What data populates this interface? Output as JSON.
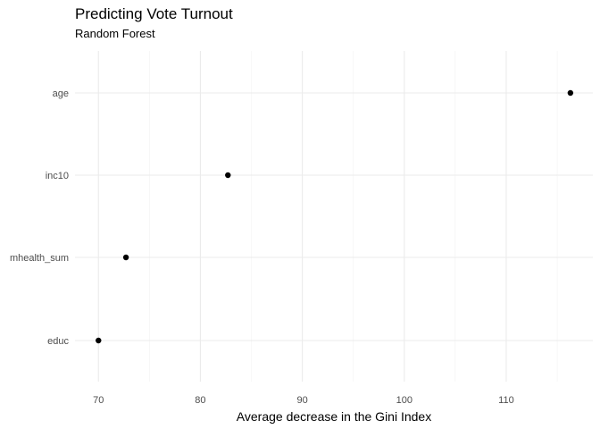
{
  "chart_data": {
    "type": "scatter",
    "title": "Predicting Vote Turnout",
    "subtitle": "Random Forest",
    "xlabel": "Average decrease in the Gini Index",
    "ylabel": "",
    "categories": [
      "age",
      "inc10",
      "mhealth_sum",
      "educ"
    ],
    "values": [
      116.3,
      82.7,
      72.7,
      70.0
    ],
    "xlim": [
      67.7,
      118.5
    ],
    "xticks": [
      70,
      80,
      90,
      100,
      110
    ],
    "grid": true,
    "point_color": "#000000"
  }
}
